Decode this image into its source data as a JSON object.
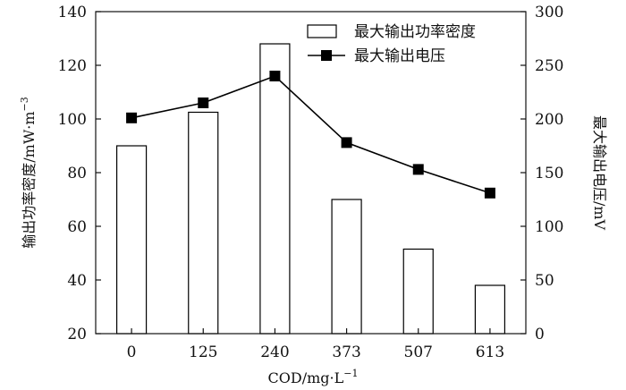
{
  "chart_data": {
    "type": "bar+line",
    "categories": [
      "0",
      "125",
      "240",
      "373",
      "507",
      "613"
    ],
    "xlabel": "COD/mg·L",
    "xlabel_sup": "−1",
    "ylabel_left": "输出功率密度/mW·m",
    "ylabel_left_sup": "−3",
    "ylabel_right": "最大输出电压/mV",
    "ylim_left": [
      20,
      140
    ],
    "ylim_right": [
      0,
      300
    ],
    "yticks_left": [
      20,
      40,
      60,
      80,
      100,
      120,
      140
    ],
    "yticks_right": [
      0,
      50,
      100,
      150,
      200,
      250,
      300
    ],
    "grid": false,
    "legend_position": "top-right",
    "series": [
      {
        "name": "最大输出功率密度",
        "type": "bar",
        "axis": "left",
        "values": [
          90,
          102.5,
          128,
          70,
          51.5,
          38
        ],
        "color": "#ffffff",
        "edge": "#000000"
      },
      {
        "name": "最大输出电压",
        "type": "line",
        "axis": "right",
        "values": [
          201,
          215,
          240,
          178,
          153,
          131
        ],
        "color": "#000000",
        "marker": "square"
      }
    ]
  }
}
